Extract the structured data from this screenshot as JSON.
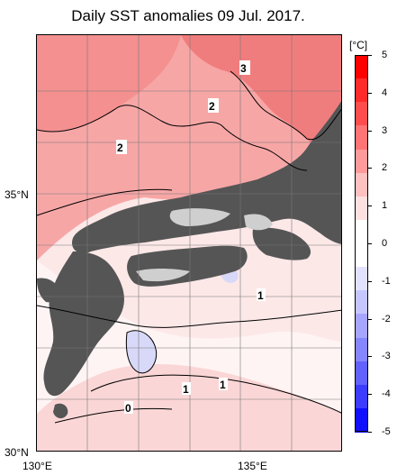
{
  "title": "Daily SST anomalies 09 Jul. 2017.",
  "map": {
    "lat_labels": [
      "35°N",
      "30°N"
    ],
    "lon_labels": [
      "130°E",
      "135°E"
    ],
    "contour_labels": [
      "3",
      "2",
      "2",
      "1",
      "1",
      "1",
      "0"
    ],
    "colors": {
      "land": "#555555",
      "lake": "#cfcfcf",
      "warm3": "#f07a7a",
      "warm2": "#f6a0a0",
      "warm1": "#fbd0d0",
      "cool": "#d8d8f8"
    }
  },
  "colorbar": {
    "unit": "[°C]",
    "ticks": [
      "5",
      "4",
      "3",
      "2",
      "1",
      "0",
      "-1",
      "-2",
      "-3",
      "-4",
      "-5"
    ],
    "colors": [
      "#ff0000",
      "#ff2a2a",
      "#ff4d4d",
      "#ff7474",
      "#ff9a9a",
      "#ffc0c0",
      "#ffe0e0",
      "#ffffff",
      "#ffffff",
      "#e2e2ff",
      "#c6c6ff",
      "#a6a6ff",
      "#8686ff",
      "#6262ff",
      "#3c3cff",
      "#1010ff"
    ]
  }
}
